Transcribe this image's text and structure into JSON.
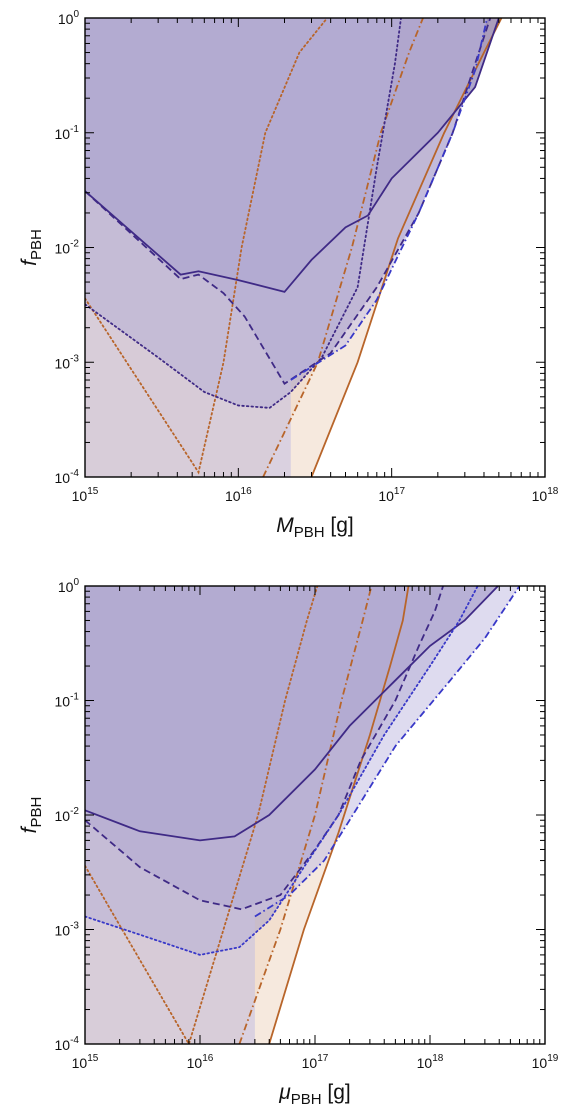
{
  "chart_data": [
    {
      "type": "area",
      "xlabel": {
        "symbol": "M",
        "subscript": "PBH",
        "unit": "[g]"
      },
      "ylabel": {
        "symbol": "f",
        "subscript": "PBH"
      },
      "x_scale": "log",
      "y_scale": "log",
      "xlim": [
        1000000000000000.0,
        1e+18
      ],
      "ylim": [
        0.0001,
        1
      ],
      "x_ticks": [
        {
          "base": "10",
          "exp": "15"
        },
        {
          "base": "10",
          "exp": "16"
        },
        {
          "base": "10",
          "exp": "17"
        },
        {
          "base": "10",
          "exp": "18"
        }
      ],
      "y_ticks": [
        {
          "base": "10",
          "exp": "-4"
        },
        {
          "base": "10",
          "exp": "-3"
        },
        {
          "base": "10",
          "exp": "-2"
        },
        {
          "base": "10",
          "exp": "-1"
        },
        {
          "base": "10",
          "exp": "0"
        }
      ],
      "grid": false,
      "series": [
        {
          "family": "orange",
          "style": "dotted",
          "fill": "#d7ad84",
          "stroke": "#b8652a",
          "points": [
            [
              1000000000000000.0,
              0.0036
            ],
            [
              5500000000000000.0,
              0.00011
            ],
            [
              8000000000000000.0,
              0.001
            ],
            [
              1.05e+16,
              0.01
            ],
            [
              1.5e+16,
              0.1
            ],
            [
              2.5e+16,
              0.5
            ],
            [
              3.8e+16,
              1
            ],
            [
              1000000000000000.0,
              1
            ]
          ]
        },
        {
          "family": "orange",
          "style": "dashdot",
          "fill": "#e8c9b0",
          "stroke": "#b8652a",
          "points": [
            [
              1.45e+16,
              0.0001
            ],
            [
              3.3e+16,
              0.001
            ],
            [
              5.5e+16,
              0.01
            ],
            [
              8.5e+16,
              0.1
            ],
            [
              1.3e+17,
              0.5
            ],
            [
              1.6e+17,
              1
            ]
          ]
        },
        {
          "family": "orange",
          "style": "solid",
          "fill": "#f3e1d3",
          "stroke": "#b8652a",
          "points": [
            [
              3e+16,
              0.0001
            ],
            [
              6e+16,
              0.001
            ],
            [
              1.1e+17,
              0.012
            ],
            [
              2.2e+17,
              0.1
            ],
            [
              4e+17,
              0.5
            ],
            [
              5.2e+17,
              1
            ]
          ]
        },
        {
          "family": "blue",
          "style": "solid",
          "fill": "#6d5f9e",
          "stroke": "#3f2a86",
          "points": [
            [
              1000000000000000.0,
              0.031
            ],
            [
              4200000000000000.0,
              0.0058
            ],
            [
              5500000000000000.0,
              0.0062
            ],
            [
              1e+16,
              0.0052
            ],
            [
              2e+16,
              0.0041
            ],
            [
              3e+16,
              0.0078
            ],
            [
              5e+16,
              0.015
            ],
            [
              7e+16,
              0.019
            ],
            [
              1e+17,
              0.04
            ],
            [
              2e+17,
              0.1
            ],
            [
              3.5e+17,
              0.25
            ],
            [
              5e+17,
              1
            ]
          ]
        },
        {
          "family": "blue",
          "style": "dashed",
          "fill": "#8d7fb2",
          "stroke": "#3f2a86",
          "points": [
            [
              1000000000000000.0,
              0.031
            ],
            [
              4200000000000000.0,
              0.0053
            ],
            [
              5500000000000000.0,
              0.0058
            ],
            [
              8000000000000000.0,
              0.004
            ],
            [
              1.1e+16,
              0.0025
            ],
            [
              2e+16,
              0.00065
            ],
            [
              4e+16,
              0.0012
            ],
            [
              8e+16,
              0.0045
            ],
            [
              1.5e+17,
              0.02
            ],
            [
              2.5e+17,
              0.1
            ],
            [
              3.5e+17,
              0.4
            ],
            [
              4.4e+17,
              1
            ]
          ]
        },
        {
          "family": "blue",
          "style": "dotted",
          "fill": "#a79ec7",
          "stroke": "#3f2a86",
          "points": [
            [
              1000000000000000.0,
              0.0032
            ],
            [
              3000000000000000.0,
              0.0011
            ],
            [
              6000000000000000.0,
              0.00055
            ],
            [
              1e+16,
              0.00042
            ],
            [
              1.6e+16,
              0.0004
            ],
            [
              2.2e+16,
              0.00055
            ],
            [
              3.5e+16,
              0.0011
            ],
            [
              6e+16,
              0.0045
            ],
            [
              8e+16,
              0.05
            ],
            [
              1.05e+17,
              0.4
            ],
            [
              1.15e+17,
              1
            ]
          ]
        },
        {
          "family": "blue",
          "style": "dashdot",
          "fill": "#c2bde2",
          "stroke": "#3838c8",
          "points": [
            [
              2.2e+16,
              0.0007
            ],
            [
              5e+16,
              0.0014
            ],
            [
              8e+16,
              0.0035
            ],
            [
              1.5e+17,
              0.02
            ],
            [
              2.5e+17,
              0.1
            ],
            [
              3.5e+17,
              0.35
            ],
            [
              4.2e+17,
              1
            ]
          ]
        }
      ]
    },
    {
      "type": "area",
      "xlabel": {
        "symbol": "μ",
        "subscript": "PBH",
        "unit": "[g]"
      },
      "ylabel": {
        "symbol": "f",
        "subscript": "PBH"
      },
      "x_scale": "log",
      "y_scale": "log",
      "xlim": [
        1000000000000000.0,
        1e+19
      ],
      "ylim": [
        0.0001,
        1
      ],
      "x_ticks": [
        {
          "base": "10",
          "exp": "15"
        },
        {
          "base": "10",
          "exp": "16"
        },
        {
          "base": "10",
          "exp": "17"
        },
        {
          "base": "10",
          "exp": "18"
        },
        {
          "base": "10",
          "exp": "19"
        }
      ],
      "y_ticks": [
        {
          "base": "10",
          "exp": "-4"
        },
        {
          "base": "10",
          "exp": "-3"
        },
        {
          "base": "10",
          "exp": "-2"
        },
        {
          "base": "10",
          "exp": "-1"
        },
        {
          "base": "10",
          "exp": "0"
        }
      ],
      "grid": false,
      "series": [
        {
          "family": "orange",
          "style": "dotted",
          "fill": "#d7ad84",
          "stroke": "#b8652a",
          "points": [
            [
              1000000000000000.0,
              0.0036
            ],
            [
              8000000000000000.0,
              0.0001
            ],
            [
              1.6e+16,
              0.001
            ],
            [
              3.2e+16,
              0.01
            ],
            [
              5.5e+16,
              0.1
            ],
            [
              8.5e+16,
              0.5
            ],
            [
              1.05e+17,
              1
            ],
            [
              1000000000000000.0,
              1
            ]
          ]
        },
        {
          "family": "orange",
          "style": "dashdot",
          "fill": "#e8c9b0",
          "stroke": "#b8652a",
          "points": [
            [
              2.2e+16,
              0.0001
            ],
            [
              5e+16,
              0.001
            ],
            [
              1e+17,
              0.01
            ],
            [
              1.7e+17,
              0.1
            ],
            [
              2.6e+17,
              0.5
            ],
            [
              3.1e+17,
              1
            ]
          ]
        },
        {
          "family": "orange",
          "style": "solid",
          "fill": "#f3e1d3",
          "stroke": "#b8652a",
          "points": [
            [
              4e+16,
              0.0001
            ],
            [
              8e+16,
              0.001
            ],
            [
              1.6e+17,
              0.007
            ],
            [
              3e+17,
              0.05
            ],
            [
              4.5e+17,
              0.2
            ],
            [
              5.8e+17,
              0.5
            ],
            [
              6.5e+17,
              1
            ]
          ]
        },
        {
          "family": "blue",
          "style": "solid",
          "fill": "#6d5f9e",
          "stroke": "#3f2a86",
          "points": [
            [
              1000000000000000.0,
              0.011
            ],
            [
              3000000000000000.0,
              0.0072
            ],
            [
              1e+16,
              0.006
            ],
            [
              2e+16,
              0.0065
            ],
            [
              4e+16,
              0.01
            ],
            [
              1e+17,
              0.025
            ],
            [
              2e+17,
              0.06
            ],
            [
              5e+17,
              0.15
            ],
            [
              1e+18,
              0.3
            ],
            [
              2e+18,
              0.5
            ],
            [
              3.9e+18,
              1
            ]
          ]
        },
        {
          "family": "blue",
          "style": "dashed",
          "fill": "#8d7fb2",
          "stroke": "#3f2a86",
          "points": [
            [
              1000000000000000.0,
              0.009
            ],
            [
              3000000000000000.0,
              0.0035
            ],
            [
              1e+16,
              0.0018
            ],
            [
              2.3e+16,
              0.0015
            ],
            [
              5e+16,
              0.002
            ],
            [
              1e+17,
              0.005
            ],
            [
              1.6e+17,
              0.01
            ],
            [
              2.5e+17,
              0.03
            ],
            [
              5e+17,
              0.1
            ],
            [
              8e+17,
              0.3
            ],
            [
              1.1e+18,
              0.6
            ],
            [
              1.3e+18,
              1
            ]
          ]
        },
        {
          "family": "blue",
          "style": "dotted",
          "fill": "#a79ec7",
          "stroke": "#3838c8",
          "points": [
            [
              1000000000000000.0,
              0.0013
            ],
            [
              3000000000000000.0,
              0.0009
            ],
            [
              1e+16,
              0.0006
            ],
            [
              2.2e+16,
              0.0007
            ],
            [
              4e+16,
              0.0012
            ],
            [
              8e+16,
              0.0035
            ],
            [
              1.6e+17,
              0.01
            ],
            [
              4e+17,
              0.05
            ],
            [
              1e+18,
              0.2
            ],
            [
              1.8e+18,
              0.5
            ],
            [
              2.6e+18,
              1
            ]
          ]
        },
        {
          "family": "blue",
          "style": "dashdot",
          "fill": "#c2bde2",
          "stroke": "#3838c8",
          "points": [
            [
              3e+16,
              0.0013
            ],
            [
              6e+16,
              0.002
            ],
            [
              1.2e+17,
              0.004
            ],
            [
              2e+17,
              0.009
            ],
            [
              5e+17,
              0.04
            ],
            [
              1.5e+18,
              0.15
            ],
            [
              3e+18,
              0.35
            ],
            [
              6e+18,
              1
            ]
          ]
        }
      ]
    }
  ]
}
